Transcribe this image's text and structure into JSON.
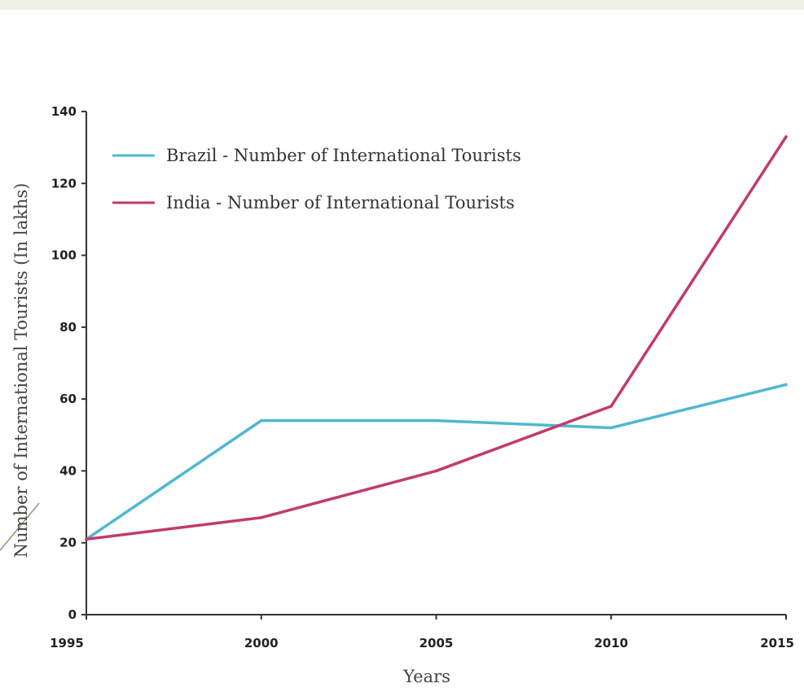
{
  "chart_data": {
    "type": "line",
    "title": "",
    "xlabel": "Years",
    "ylabel": "Number of International Tourists (In lakhs)",
    "x": [
      1995,
      2000,
      2005,
      2010,
      2015
    ],
    "x_tick_labels": [
      "1995",
      "2000",
      "2005",
      "2010",
      "2015"
    ],
    "ylim": [
      0,
      140
    ],
    "y_ticks": [
      0,
      20,
      40,
      60,
      80,
      100,
      120,
      140
    ],
    "y_tick_labels": [
      "0",
      "20",
      "40",
      "60",
      "80",
      "100",
      "120",
      "140"
    ],
    "grid": false,
    "legend_position": "top-left",
    "series": [
      {
        "name": "Brazil - Number of International Tourists",
        "color": "#4fb8d1",
        "values": [
          21,
          54,
          54,
          52,
          64
        ]
      },
      {
        "name": "India - Number of International Tourists",
        "color": "#c23a6c",
        "values": [
          21,
          27,
          40,
          58,
          133
        ]
      }
    ]
  }
}
